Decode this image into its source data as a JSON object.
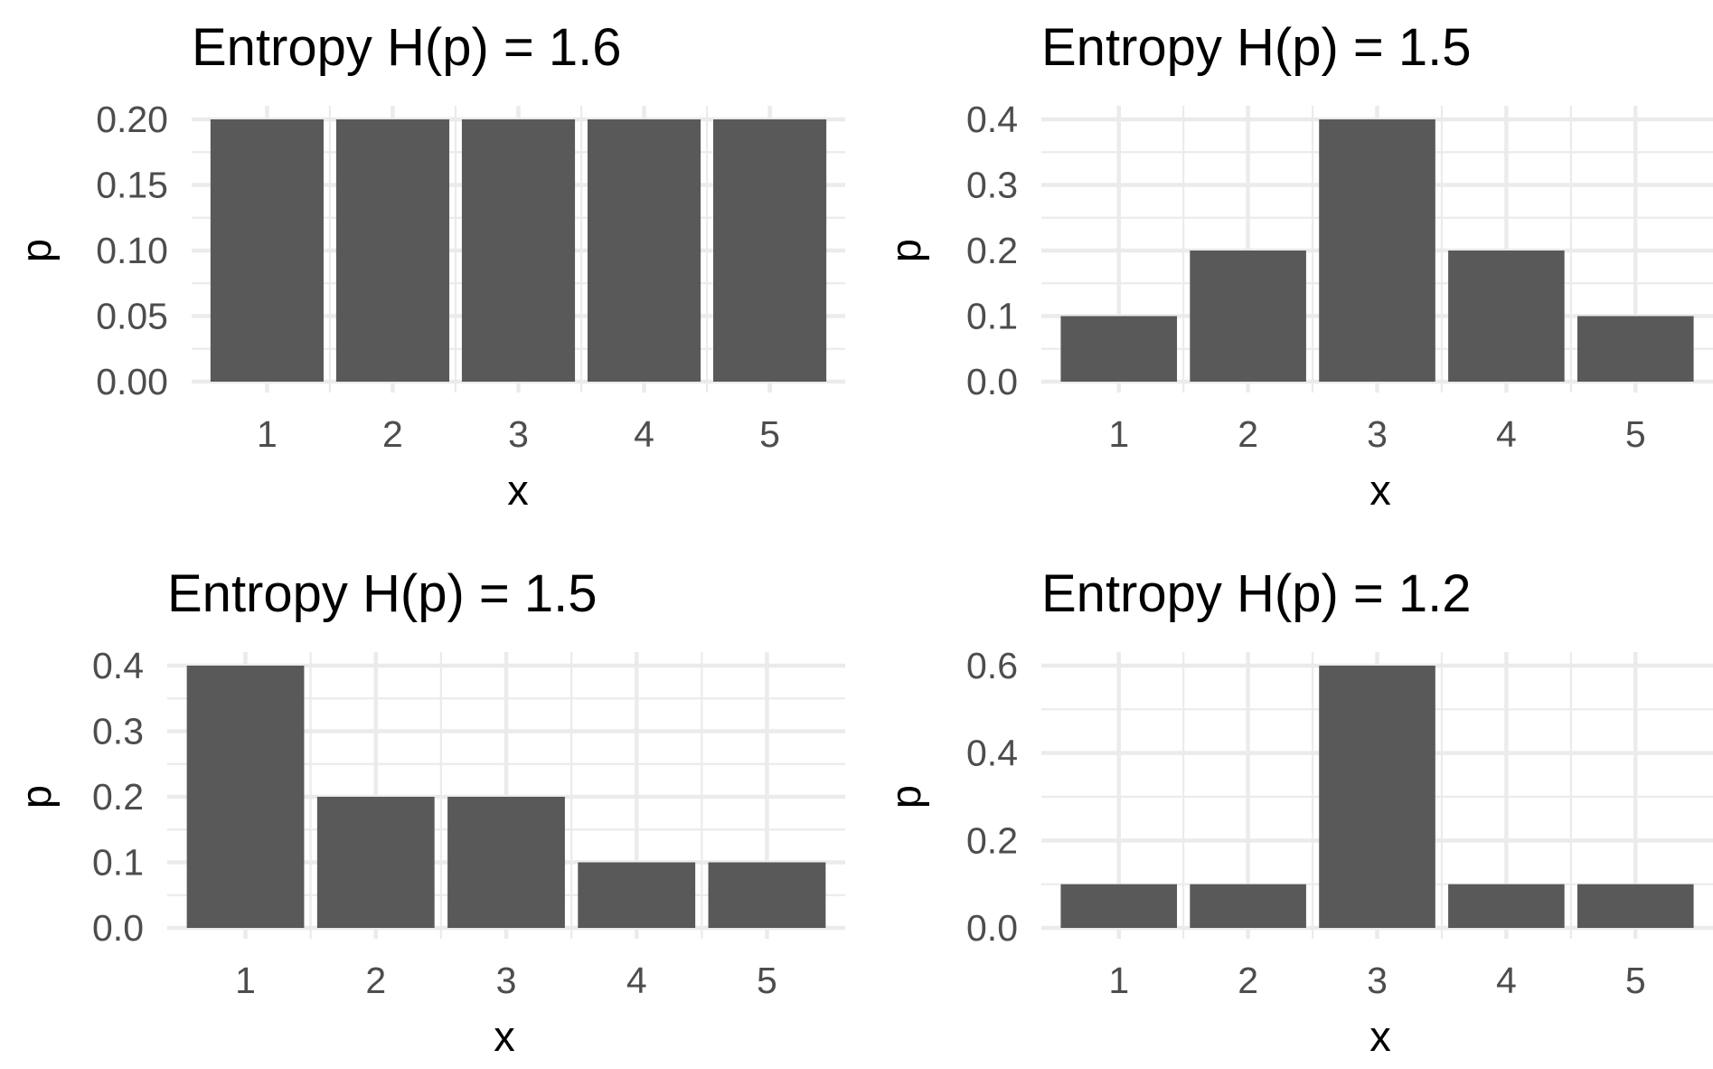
{
  "chart_data": [
    {
      "type": "bar",
      "title": "Entropy H(p) = 1.6",
      "xlabel": "x",
      "ylabel": "p",
      "categories": [
        "1",
        "2",
        "3",
        "4",
        "5"
      ],
      "values": [
        0.2,
        0.2,
        0.2,
        0.2,
        0.2
      ],
      "ylim": [
        0,
        0.2
      ],
      "yticks": [
        "0.00",
        "0.05",
        "0.10",
        "0.15",
        "0.20"
      ],
      "ytick_values": [
        0,
        0.05,
        0.1,
        0.15,
        0.2
      ],
      "grid": true,
      "bar_color": "#595959"
    },
    {
      "type": "bar",
      "title": "Entropy H(p) = 1.5",
      "xlabel": "x",
      "ylabel": "p",
      "categories": [
        "1",
        "2",
        "3",
        "4",
        "5"
      ],
      "values": [
        0.1,
        0.2,
        0.4,
        0.2,
        0.1
      ],
      "ylim": [
        0,
        0.4
      ],
      "yticks": [
        "0.0",
        "0.1",
        "0.2",
        "0.3",
        "0.4"
      ],
      "ytick_values": [
        0,
        0.1,
        0.2,
        0.3,
        0.4
      ],
      "grid": true,
      "bar_color": "#595959"
    },
    {
      "type": "bar",
      "title": "Entropy H(p) = 1.5",
      "xlabel": "x",
      "ylabel": "p",
      "categories": [
        "1",
        "2",
        "3",
        "4",
        "5"
      ],
      "values": [
        0.4,
        0.2,
        0.2,
        0.1,
        0.1
      ],
      "ylim": [
        0,
        0.4
      ],
      "yticks": [
        "0.0",
        "0.1",
        "0.2",
        "0.3",
        "0.4"
      ],
      "ytick_values": [
        0,
        0.1,
        0.2,
        0.3,
        0.4
      ],
      "grid": true,
      "bar_color": "#595959"
    },
    {
      "type": "bar",
      "title": "Entropy H(p) = 1.2",
      "xlabel": "x",
      "ylabel": "p",
      "categories": [
        "1",
        "2",
        "3",
        "4",
        "5"
      ],
      "values": [
        0.1,
        0.1,
        0.6,
        0.1,
        0.1
      ],
      "ylim": [
        0,
        0.6
      ],
      "yticks": [
        "0.0",
        "0.2",
        "0.4",
        "0.6"
      ],
      "ytick_values": [
        0,
        0.2,
        0.4,
        0.6
      ],
      "grid": true,
      "bar_color": "#595959"
    }
  ]
}
